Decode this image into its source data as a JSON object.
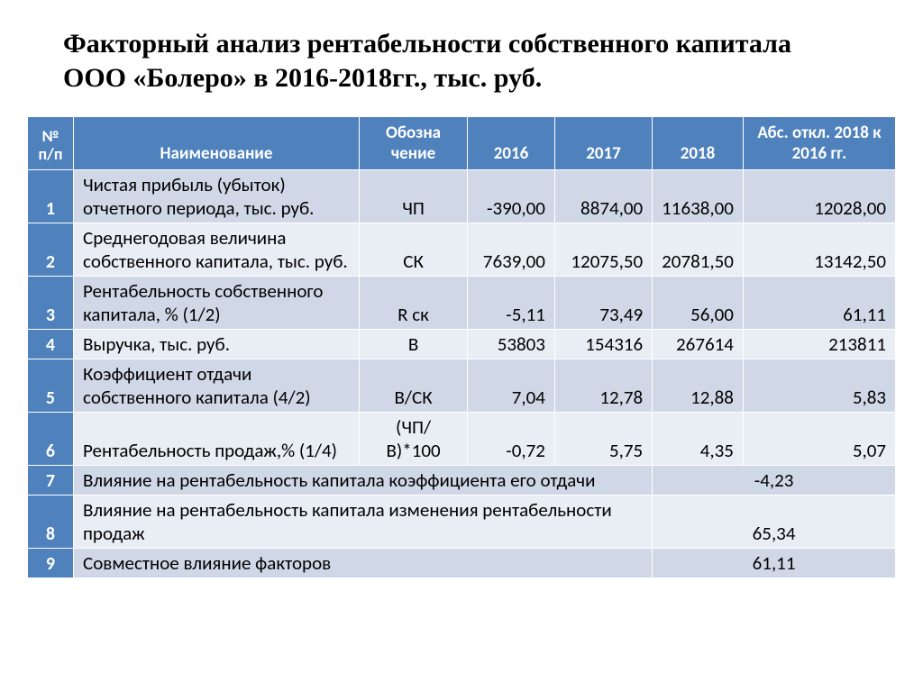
{
  "title": "Факторный анализ рентабельности собственного капитала ООО «Болеро» в 2016-2018гг., тыс. руб.",
  "table": {
    "header_bg": "#4f81bd",
    "header_fg": "#ffffff",
    "row_odd_bg": "#d0d8e8",
    "row_even_bg": "#e9edf4",
    "font_family": "Calibri",
    "headers": {
      "num": "№ п/п",
      "name": "Наименование",
      "denote": "Обозна чение",
      "y2016": "2016",
      "y2017": "2017",
      "y2018": "2018",
      "abs": "Абс. откл. 2018 к 2016 гг."
    },
    "rows": [
      {
        "n": "1",
        "name": "Чистая прибыль (убыток) отчетного периода, тыс. руб.",
        "denote": "ЧП",
        "y2016": "-390,00",
        "y2017": "8874,00",
        "y2018": "11638,00",
        "abs": "12028,00"
      },
      {
        "n": "2",
        "name": "Среднегодовая величина собственного капитала, тыс. руб.",
        "denote": "СК",
        "y2016": "7639,00",
        "y2017": "12075,50",
        "y2018": "20781,50",
        "abs": "13142,50"
      },
      {
        "n": "3",
        "name": "Рентабельность собственного капитала, % (1/2)",
        "denote": "R ск",
        "y2016": "-5,11",
        "y2017": "73,49",
        "y2018": "56,00",
        "abs": "61,11"
      },
      {
        "n": "4",
        "name": "Выручка, тыс. руб.",
        "denote": "В",
        "y2016": "53803",
        "y2017": "154316",
        "y2018": "267614",
        "abs": "213811"
      },
      {
        "n": "5",
        "name": "Коэффициент отдачи собственного капитала (4/2)",
        "denote": "В/СК",
        "y2016": "7,04",
        "y2017": "12,78",
        "y2018": "12,88",
        "abs": "5,83"
      },
      {
        "n": "6",
        "name": "Рентабельность продаж,% (1/4)",
        "denote": "(ЧП/В)*100",
        "y2016": "-0,72",
        "y2017": "5,75",
        "y2018": "4,35",
        "abs": "5,07"
      }
    ],
    "summary_rows": [
      {
        "n": "7",
        "name": "Влияние на рентабельность капитала коэффициента его отдачи",
        "value": "-4,23"
      },
      {
        "n": "8",
        "name": "Влияние на рентабельность капитала изменения рентабельности продаж",
        "value": "65,34"
      },
      {
        "n": "9",
        "name": "Совместное влияние факторов",
        "value": "61,11"
      }
    ]
  }
}
